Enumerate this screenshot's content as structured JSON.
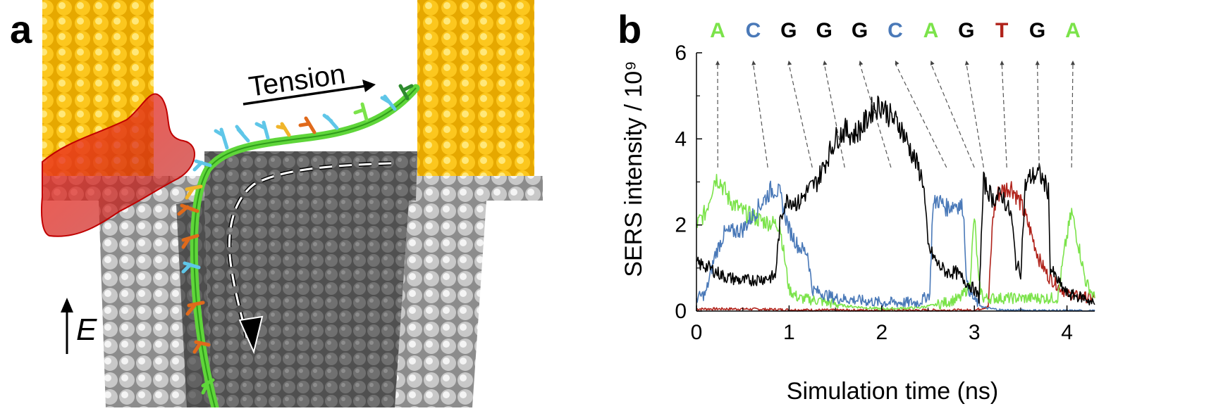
{
  "panel_a": {
    "letter": "a",
    "tension_label": "Tension",
    "field_label": "E"
  },
  "panel_b": {
    "letter": "b"
  },
  "chart_data": {
    "type": "line",
    "ylabel": "SERS intensity / 10⁹",
    "xlabel": "Simulation time (ns)",
    "xlim": [
      0,
      4.3
    ],
    "ylim": [
      0,
      6
    ],
    "x_ticks": [
      "0",
      "1",
      "2",
      "3",
      "4"
    ],
    "y_ticks": [
      "0",
      "2",
      "4",
      "6"
    ],
    "grid": false,
    "sequence": [
      {
        "base": "A",
        "color": "#7be34a",
        "peak_time": 0.23
      },
      {
        "base": "C",
        "color": "#4a79b8",
        "peak_time": 0.77
      },
      {
        "base": "G",
        "color": "#000000",
        "peak_time": 1.25
      },
      {
        "base": "G",
        "color": "#000000",
        "peak_time": 1.6
      },
      {
        "base": "G",
        "color": "#000000",
        "peak_time": 2.1
      },
      {
        "base": "C",
        "color": "#4a79b8",
        "peak_time": 2.7
      },
      {
        "base": "A",
        "color": "#7be34a",
        "peak_time": 3.0
      },
      {
        "base": "G",
        "color": "#000000",
        "peak_time": 3.1
      },
      {
        "base": "T",
        "color": "#b0231b",
        "peak_time": 3.35
      },
      {
        "base": "G",
        "color": "#000000",
        "peak_time": 3.7
      },
      {
        "base": "A",
        "color": "#7be34a",
        "peak_time": 4.05
      }
    ],
    "series": [
      {
        "base": "A",
        "color": "#7be34a",
        "x": [
          0,
          0.1,
          0.2,
          0.25,
          0.35,
          0.5,
          0.7,
          0.9,
          1.0,
          1.1,
          1.3,
          1.6,
          2.0,
          2.4,
          2.6,
          2.85,
          2.95,
          3.0,
          3.05,
          3.1,
          3.3,
          3.6,
          3.9,
          3.98,
          4.05,
          4.12,
          4.2,
          4.3
        ],
        "y": [
          2.0,
          2.3,
          3.1,
          3.05,
          2.6,
          2.3,
          2.1,
          2.0,
          0.5,
          0.3,
          0.25,
          0.12,
          0.05,
          0.08,
          0.15,
          0.3,
          0.6,
          2.2,
          0.6,
          0.3,
          0.3,
          0.3,
          0.3,
          1.5,
          2.3,
          1.6,
          0.7,
          0.3
        ]
      },
      {
        "base": "C",
        "color": "#4a79b8",
        "x": [
          0,
          0.1,
          0.2,
          0.3,
          0.5,
          0.7,
          0.8,
          0.85,
          0.9,
          1.0,
          1.1,
          1.2,
          1.25,
          1.5,
          2.0,
          2.4,
          2.52,
          2.55,
          2.6,
          2.7,
          2.8,
          2.88,
          2.92,
          3.0,
          3.1,
          3.3,
          4.3
        ],
        "y": [
          0.3,
          0.4,
          1.3,
          1.8,
          1.9,
          2.5,
          2.8,
          2.85,
          2.7,
          1.9,
          1.5,
          1.35,
          0.5,
          0.3,
          0.2,
          0.2,
          0.4,
          2.4,
          2.6,
          2.4,
          2.5,
          2.4,
          0.6,
          0.25,
          0.08,
          0.02,
          0.0
        ]
      },
      {
        "base": "G",
        "color": "#000000",
        "x": [
          0,
          0.1,
          0.3,
          0.5,
          0.7,
          0.85,
          0.9,
          0.95,
          1.0,
          1.1,
          1.2,
          1.3,
          1.5,
          1.6,
          1.7,
          1.8,
          1.9,
          2.0,
          2.1,
          2.2,
          2.3,
          2.4,
          2.45,
          2.5,
          2.6,
          2.7,
          2.8,
          2.9,
          3.0,
          3.05,
          3.1,
          3.15,
          3.2,
          3.3,
          3.4,
          3.45,
          3.5,
          3.55,
          3.6,
          3.7,
          3.8,
          3.82,
          3.9,
          4.0,
          4.1,
          4.2,
          4.3
        ],
        "y": [
          1.1,
          1.05,
          0.8,
          0.7,
          0.75,
          0.8,
          2.0,
          2.5,
          2.6,
          2.5,
          2.8,
          3.0,
          4.0,
          4.2,
          4.1,
          4.3,
          4.7,
          4.8,
          4.5,
          4.3,
          3.8,
          3.3,
          3.0,
          1.5,
          1.1,
          0.9,
          0.9,
          0.7,
          0.5,
          0.3,
          3.0,
          2.8,
          2.6,
          2.7,
          2.2,
          1.1,
          0.9,
          2.9,
          3.1,
          3.2,
          2.8,
          1.0,
          0.7,
          0.4,
          0.35,
          0.3,
          0.15
        ]
      },
      {
        "base": "T",
        "color": "#b0231b",
        "x": [
          0,
          0.5,
          1.0,
          1.5,
          2.0,
          2.5,
          3.0,
          3.15,
          3.2,
          3.25,
          3.3,
          3.4,
          3.5,
          3.6,
          3.7,
          3.8,
          3.9,
          4.0,
          4.1,
          4.3
        ],
        "y": [
          0.05,
          0.05,
          0.03,
          0.02,
          0.02,
          0.02,
          0.02,
          0.1,
          2.2,
          2.7,
          2.8,
          2.9,
          2.5,
          1.9,
          1.2,
          0.8,
          0.6,
          0.4,
          0.35,
          0.3
        ]
      }
    ]
  }
}
